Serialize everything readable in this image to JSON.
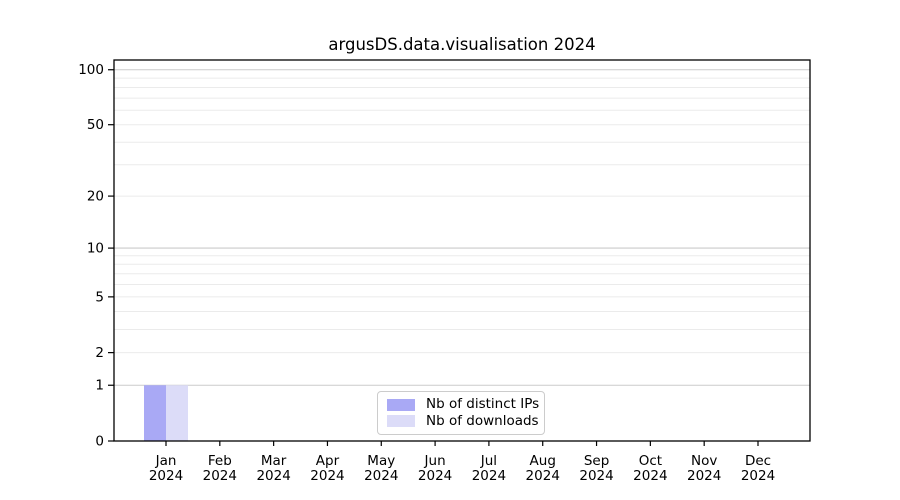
{
  "figure": {
    "title": "argusDS.data.visualisation 2024"
  },
  "chart_data": {
    "type": "bar",
    "title": "argusDS.data.visualisation 2024",
    "categories": [
      "Jan",
      "Feb",
      "Mar",
      "Apr",
      "May",
      "Jun",
      "Jul",
      "Aug",
      "Sep",
      "Oct",
      "Nov",
      "Dec"
    ],
    "category_year": "2024",
    "series": [
      {
        "name": "Nb of distinct IPs",
        "color": "#a9a9f5",
        "values": [
          1,
          0,
          0,
          0,
          0,
          0,
          0,
          0,
          0,
          0,
          0,
          0
        ]
      },
      {
        "name": "Nb of downloads",
        "color": "#dcdcf8",
        "values": [
          1,
          0,
          0,
          0,
          0,
          0,
          0,
          0,
          0,
          0,
          0,
          0
        ]
      }
    ],
    "xlabel": "",
    "ylabel": "",
    "yscale": "log1p",
    "ylim": [
      0,
      113
    ],
    "yticks": [
      0,
      1,
      2,
      5,
      10,
      20,
      50,
      100
    ],
    "ygrid_major": [
      1,
      10,
      100
    ],
    "ygrid_minor": [
      2,
      3,
      4,
      5,
      6,
      7,
      8,
      9,
      20,
      30,
      40,
      50,
      60,
      70,
      80,
      90
    ],
    "grid": "both",
    "legend_position": "lower center",
    "colors": {
      "background": "#ffffff",
      "axis": "#000000",
      "grid_major": "#cbcbcb",
      "grid_minor": "#ebebeb",
      "legend_border": "#cccccc"
    }
  }
}
